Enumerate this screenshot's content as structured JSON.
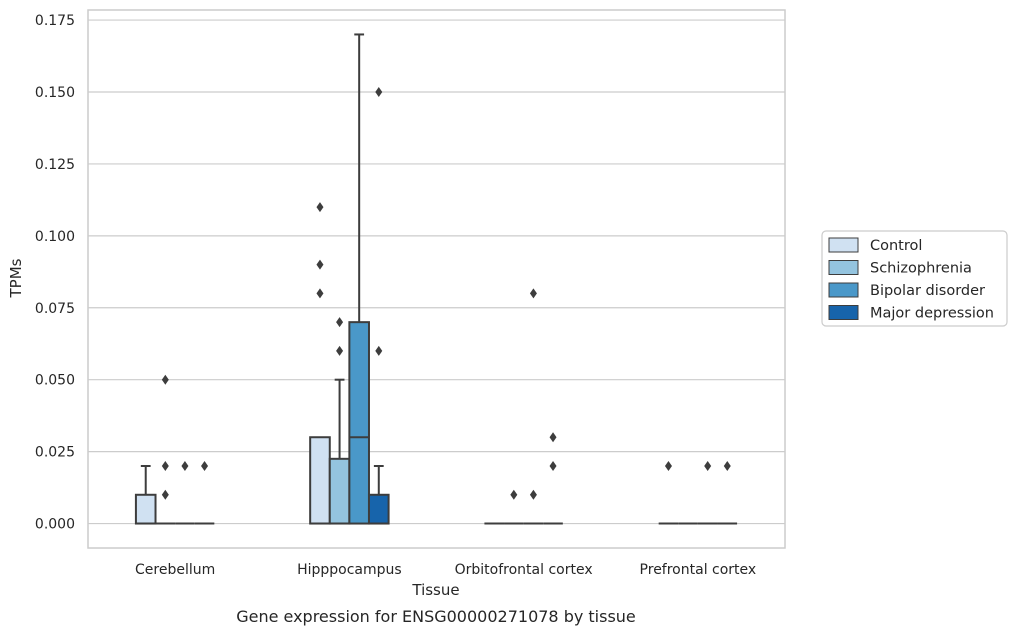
{
  "caption": "Gene expression for ENSG00000271078 by tissue",
  "chart_data": {
    "type": "box",
    "title": "",
    "xlabel": "Tissue",
    "ylabel": "TPMs",
    "ylim": [
      -0.0085,
      0.1785
    ],
    "yticks": [
      0.0,
      0.025,
      0.05,
      0.075,
      0.1,
      0.125,
      0.15,
      0.175
    ],
    "ytick_labels": [
      "0.000",
      "0.025",
      "0.050",
      "0.075",
      "0.100",
      "0.125",
      "0.150",
      "0.175"
    ],
    "grid": true,
    "legend_position": "right",
    "categories": [
      "Cerebellum",
      "Hipppocampus",
      "Orbitofrontal cortex",
      "Prefrontal cortex"
    ],
    "series": [
      {
        "name": "Control",
        "color": "#d0e1f2",
        "boxes": [
          {
            "q1": 0.0,
            "median": 0.0,
            "q3": 0.01,
            "whisker_low": 0.0,
            "whisker_high": 0.02,
            "outliers": []
          },
          {
            "q1": 0.0,
            "median": 0.0,
            "q3": 0.03,
            "whisker_low": 0.0,
            "whisker_high": 0.03,
            "outliers": [
              0.08,
              0.09,
              0.11
            ]
          },
          {
            "q1": 0.0,
            "median": 0.0,
            "q3": 0.0,
            "whisker_low": 0.0,
            "whisker_high": 0.0,
            "outliers": []
          },
          {
            "q1": 0.0,
            "median": 0.0,
            "q3": 0.0,
            "whisker_low": 0.0,
            "whisker_high": 0.0,
            "outliers": [
              0.02
            ]
          }
        ]
      },
      {
        "name": "Schizophrenia",
        "color": "#94c4df",
        "boxes": [
          {
            "q1": 0.0,
            "median": 0.0,
            "q3": 0.0,
            "whisker_low": 0.0,
            "whisker_high": 0.0,
            "outliers": [
              0.01,
              0.02,
              0.05
            ]
          },
          {
            "q1": 0.0,
            "median": 0.0,
            "q3": 0.0225,
            "whisker_low": 0.0,
            "whisker_high": 0.05,
            "outliers": [
              0.06,
              0.07
            ]
          },
          {
            "q1": 0.0,
            "median": 0.0,
            "q3": 0.0,
            "whisker_low": 0.0,
            "whisker_high": 0.0,
            "outliers": [
              0.01
            ]
          },
          {
            "q1": 0.0,
            "median": 0.0,
            "q3": 0.0,
            "whisker_low": 0.0,
            "whisker_high": 0.0,
            "outliers": []
          }
        ]
      },
      {
        "name": "Bipolar disorder",
        "color": "#4a98c9",
        "boxes": [
          {
            "q1": 0.0,
            "median": 0.0,
            "q3": 0.0,
            "whisker_low": 0.0,
            "whisker_high": 0.0,
            "outliers": [
              0.02
            ]
          },
          {
            "q1": 0.0,
            "median": 0.03,
            "q3": 0.07,
            "whisker_low": 0.0,
            "whisker_high": 0.17,
            "outliers": []
          },
          {
            "q1": 0.0,
            "median": 0.0,
            "q3": 0.0,
            "whisker_low": 0.0,
            "whisker_high": 0.0,
            "outliers": [
              0.01,
              0.08
            ]
          },
          {
            "q1": 0.0,
            "median": 0.0,
            "q3": 0.0,
            "whisker_low": 0.0,
            "whisker_high": 0.0,
            "outliers": [
              0.02
            ]
          }
        ]
      },
      {
        "name": "Major depression",
        "color": "#1764ab",
        "boxes": [
          {
            "q1": 0.0,
            "median": 0.0,
            "q3": 0.0,
            "whisker_low": 0.0,
            "whisker_high": 0.0,
            "outliers": [
              0.02
            ]
          },
          {
            "q1": 0.0,
            "median": 0.0,
            "q3": 0.01,
            "whisker_low": 0.0,
            "whisker_high": 0.02,
            "outliers": [
              0.06,
              0.15
            ]
          },
          {
            "q1": 0.0,
            "median": 0.0,
            "q3": 0.0,
            "whisker_low": 0.0,
            "whisker_high": 0.0,
            "outliers": [
              0.02,
              0.03
            ]
          },
          {
            "q1": 0.0,
            "median": 0.0,
            "q3": 0.0,
            "whisker_low": 0.0,
            "whisker_high": 0.0,
            "outliers": [
              0.02
            ]
          }
        ]
      }
    ]
  }
}
